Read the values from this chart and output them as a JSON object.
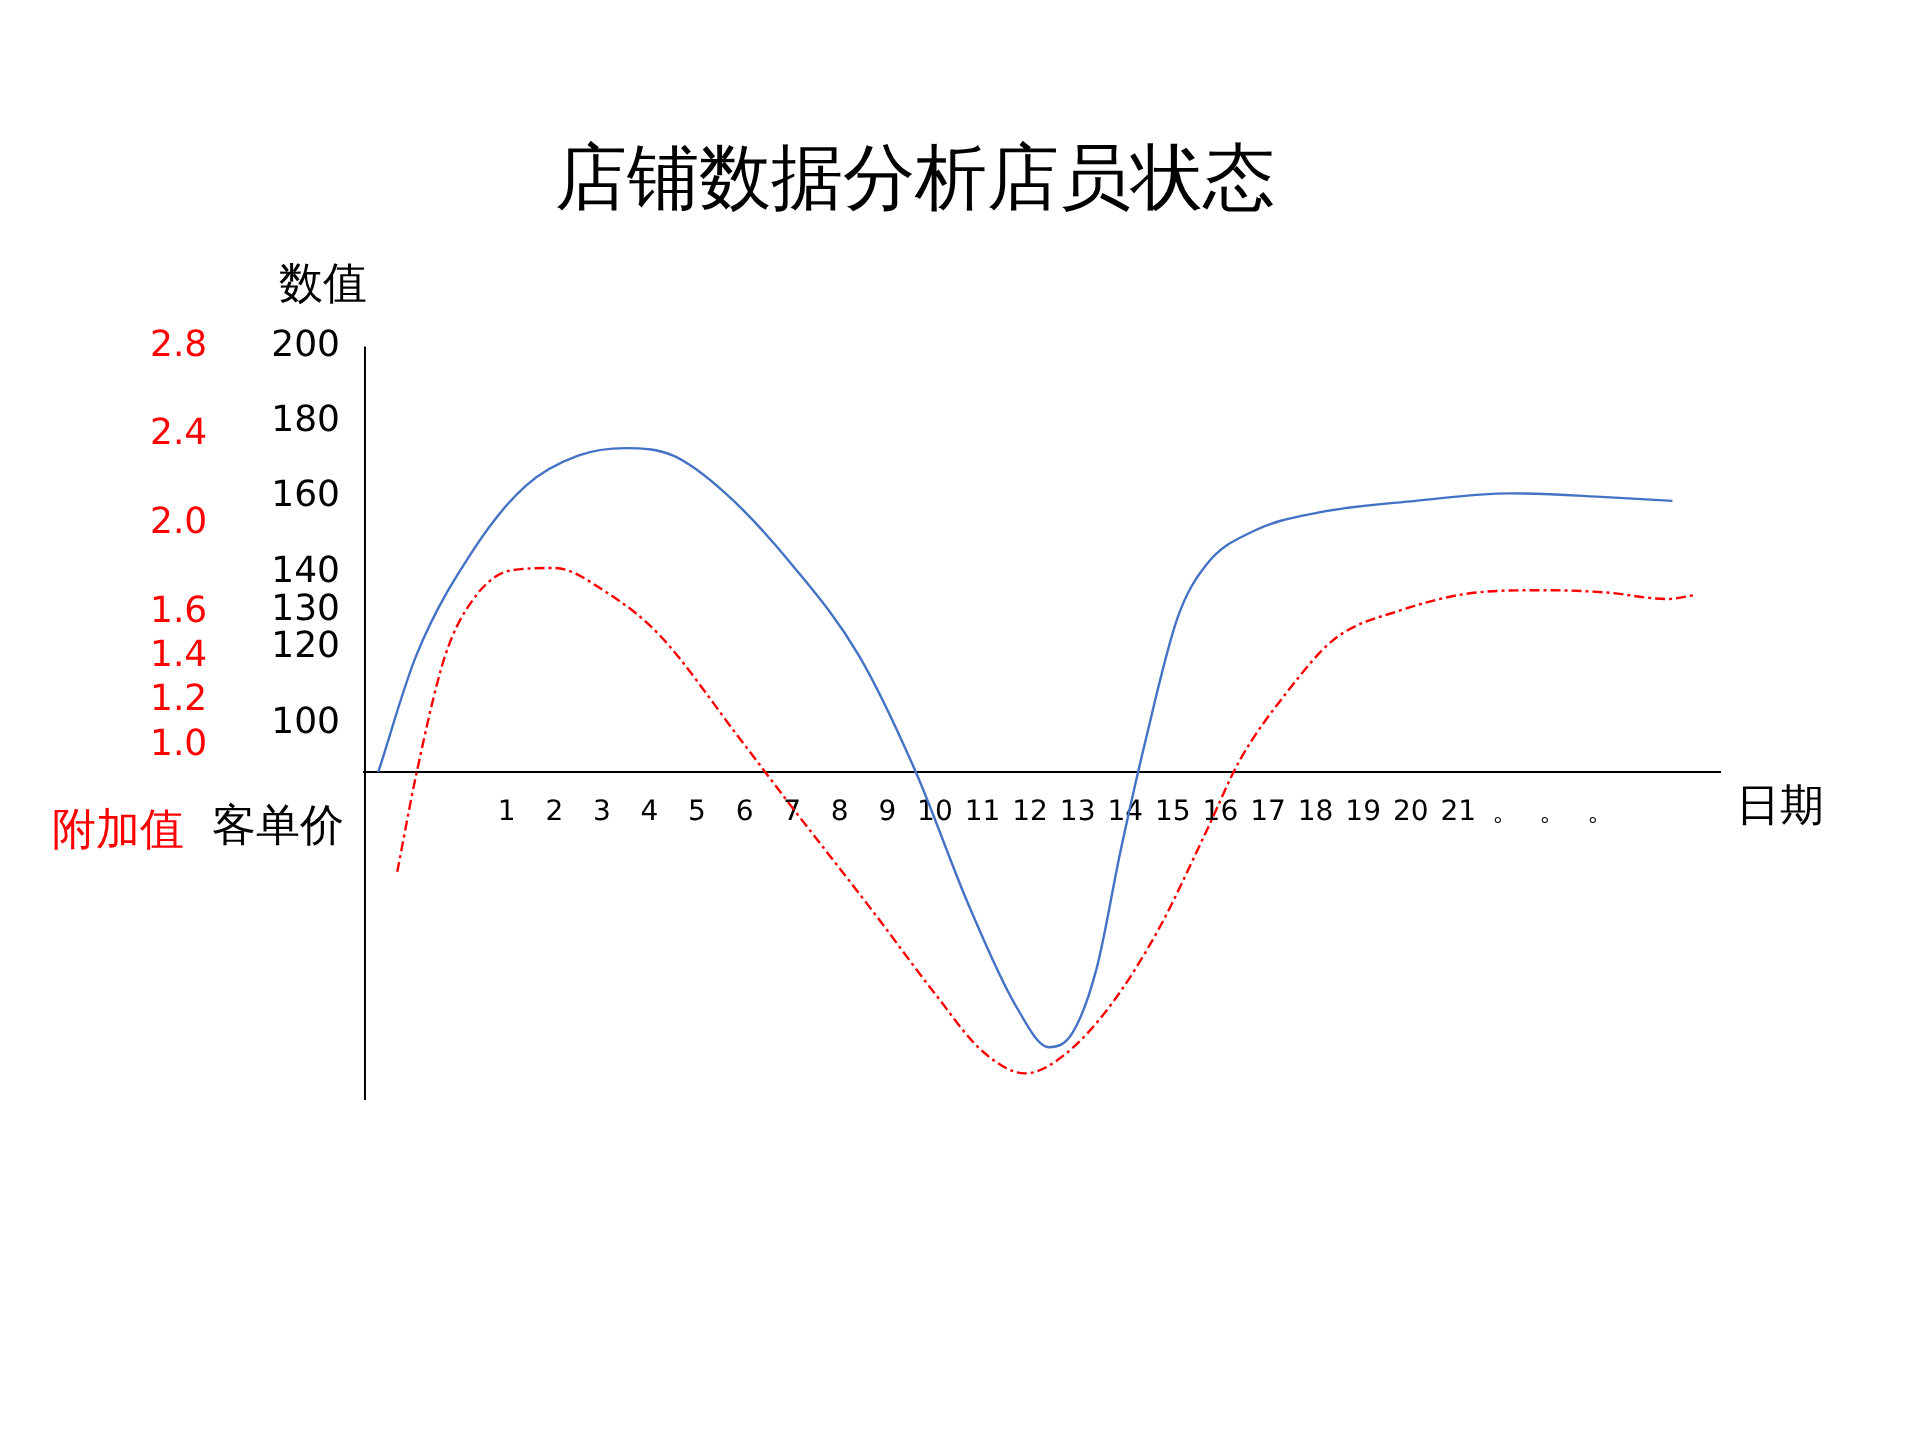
{
  "chart_data": {
    "type": "line",
    "title": "店铺数据分析店员状态",
    "xlabel": "日期",
    "ylabel": "客单价",
    "y2label": "附加值",
    "annotations": [
      "数值"
    ],
    "xlim": [
      -2,
      26.5
    ],
    "xticks": [
      1,
      2,
      3,
      4,
      5,
      6,
      7,
      8,
      9,
      10,
      11,
      12,
      13,
      14,
      15,
      16,
      17,
      18,
      19,
      20,
      21,
      {
        "value": 22,
        "label": "。"
      },
      {
        "value": 23,
        "label": "。"
      },
      {
        "value": 24,
        "label": "。"
      }
    ],
    "ylim": [
      0,
      200
    ],
    "yticks": [
      100,
      120,
      130,
      140,
      160,
      180,
      200
    ],
    "y2lim": [
      -0.6,
      2.8
    ],
    "y2ticks": [
      {
        "value": 1,
        "label": "1.0"
      },
      1.2,
      1.4,
      1.6,
      {
        "value": 2,
        "label": "2.0"
      },
      2.4,
      2.8
    ],
    "grid": false,
    "legend": false,
    "marker": "none",
    "series": [
      {
        "color": "#4472c4",
        "line_style": "solid",
        "x": [
          -1.7,
          -0.9,
          0.3,
          1.4,
          2.5,
          3.5,
          4.5,
          5.6,
          7.0,
          8.4,
          9.6,
          10.7,
          11.7,
          12.4,
          12.9,
          13.4,
          13.9,
          14.4,
          15.1,
          15.7,
          16.7,
          18.1,
          20.1,
          22.1,
          24.1,
          25.5
        ],
        "values": [
          87,
          118,
          146,
          163,
          171,
          173,
          171,
          161,
          142,
          118,
          87,
          52,
          25,
          14,
          18,
          35,
          66,
          94,
          128,
          142,
          151,
          156,
          159,
          161,
          160,
          159
        ]
      },
      {
        "color": "#ff0000",
        "line_style": "dashed",
        "axis": "y2",
        "x": [
          -1.3,
          -0.9,
          -0.3,
          0.3,
          1.1,
          2.0,
          3.1,
          4.2,
          5.9,
          7.0,
          8.7,
          10.0,
          11.0,
          11.9,
          12.7,
          13.7,
          14.7,
          15.7,
          16.4,
          17.4,
          18.4,
          19.8,
          21.4,
          22.8,
          24.1,
          25.4,
          26.0
        ],
        "values": [
          0.43,
          0.87,
          1.4,
          1.66,
          1.79,
          1.8,
          1.69,
          1.5,
          1.03,
          0.72,
          0.25,
          -0.12,
          -0.38,
          -0.48,
          -0.4,
          -0.17,
          0.17,
          0.61,
          0.93,
          1.24,
          1.48,
          1.61,
          1.69,
          1.7,
          1.69,
          1.66,
          1.68
        ]
      }
    ]
  }
}
